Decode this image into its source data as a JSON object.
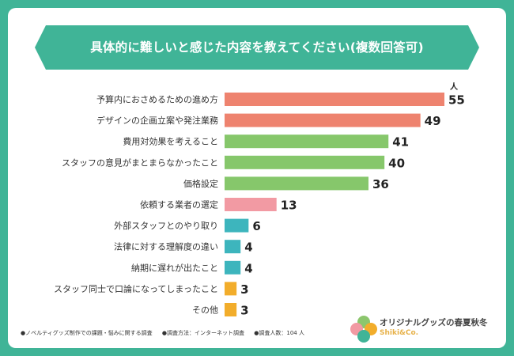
{
  "title": "具体的に難しいと感じた内容を教えてください(複数回答可)",
  "chart_data": {
    "type": "bar",
    "orientation": "horizontal",
    "unit": "人",
    "categories": [
      "予算内におさめるための進め方",
      "デザインの企画立案や発注業務",
      "費用対効果を考えること",
      "スタッフの意見がまとまらなかったこと",
      "価格設定",
      "依頼する業者の選定",
      "外部スタッフとのやり取り",
      "法律に対する理解度の違い",
      "納期に遅れが出たこと",
      "スタッフ同士で口論になってしまったこと",
      "その他"
    ],
    "values": [
      55,
      49,
      41,
      40,
      36,
      13,
      6,
      4,
      4,
      3,
      3
    ],
    "colors": [
      "#ee836f",
      "#ee836f",
      "#86c76b",
      "#86c76b",
      "#86c76b",
      "#f29aa3",
      "#3db5bd",
      "#3db5bd",
      "#3db5bd",
      "#f2ad2b",
      "#f2ad2b"
    ],
    "xlim": [
      0,
      55
    ]
  },
  "footer": {
    "note1": "●ノベルティグッズ制作での課題・悩みに関する調査",
    "note2": "●調査方法：インターネット調査",
    "note3": "●調査人数：104 人"
  },
  "brand": {
    "name": "オリジナルグッズの春夏秋冬",
    "sub": "Shiki&Co."
  }
}
